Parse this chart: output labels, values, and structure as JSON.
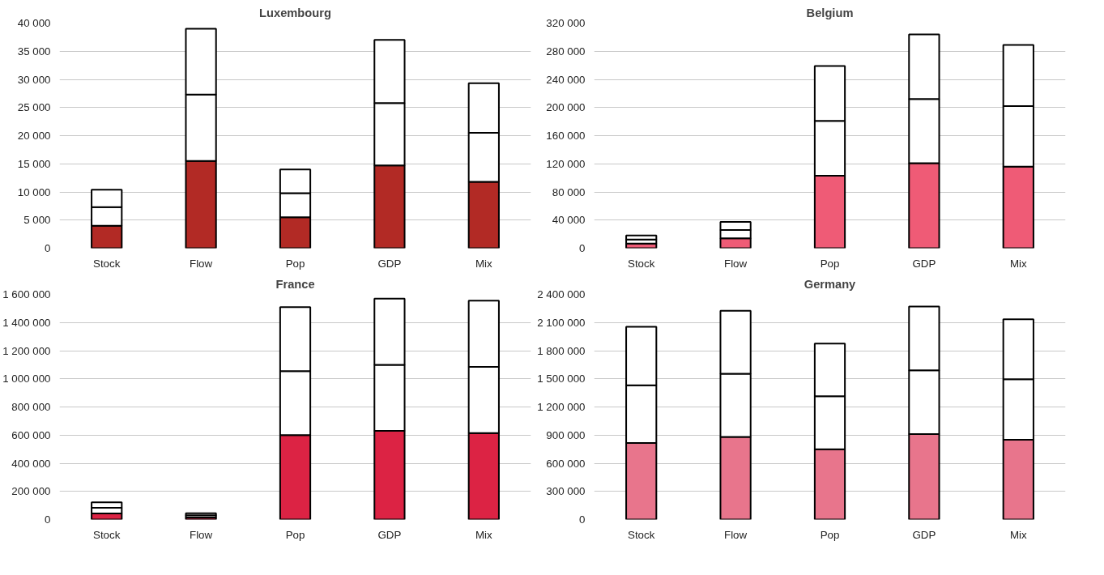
{
  "chart_data": [
    {
      "type": "bar",
      "title": "Luxembourg",
      "stacked": true,
      "grid": "y",
      "categories": [
        "Stock",
        "Flow",
        "Pop",
        "GDP",
        "Mix"
      ],
      "series": [
        {
          "color": "#b22a25",
          "values": [
            4000,
            15500,
            5500,
            14700,
            11800
          ]
        },
        {
          "color": "#ffffff",
          "values": [
            3300,
            11800,
            4300,
            11100,
            8700
          ]
        },
        {
          "color": "#ffffff",
          "values": [
            3100,
            11700,
            4200,
            11200,
            8800
          ]
        }
      ],
      "ylim": [
        0,
        40000
      ],
      "yticks": [
        0,
        {
          "value": 5000,
          "label": "5 000"
        },
        {
          "value": 10000,
          "label": "10 000"
        },
        {
          "value": 15000,
          "label": "15 000"
        },
        {
          "value": 20000,
          "label": "20 000"
        },
        {
          "value": 25000,
          "label": "25 000"
        },
        {
          "value": 30000,
          "label": "30 000"
        },
        {
          "value": 35000,
          "label": "35 000"
        },
        {
          "value": 40000,
          "label": "40 000"
        }
      ]
    },
    {
      "type": "bar",
      "title": "Belgium",
      "stacked": true,
      "grid": "y",
      "categories": [
        "Stock",
        "Flow",
        "Pop",
        "GDP",
        "Mix"
      ],
      "series": [
        {
          "color": "#ef5b76",
          "values": [
            6500,
            14000,
            103000,
            121000,
            116000
          ]
        },
        {
          "color": "#ffffff",
          "values": [
            6000,
            12000,
            78000,
            91000,
            86000
          ]
        },
        {
          "color": "#ffffff",
          "values": [
            5500,
            11500,
            78000,
            92000,
            87000
          ]
        }
      ],
      "ylim": [
        0,
        320000
      ],
      "yticks": [
        0,
        {
          "value": 40000,
          "label": "40 000"
        },
        {
          "value": 80000,
          "label": "80 000"
        },
        {
          "value": 120000,
          "label": "120 000"
        },
        {
          "value": 160000,
          "label": "160 000"
        },
        {
          "value": 200000,
          "label": "200 000"
        },
        {
          "value": 240000,
          "label": "240 000"
        },
        {
          "value": 280000,
          "label": "280 000"
        },
        {
          "value": 320000,
          "label": "320 000"
        }
      ]
    },
    {
      "type": "bar",
      "title": "France",
      "stacked": true,
      "grid": "y",
      "categories": [
        "Stock",
        "Flow",
        "Pop",
        "GDP",
        "Mix"
      ],
      "series": [
        {
          "color": "#dc2344",
          "values": [
            43000,
            15000,
            600000,
            630000,
            615000
          ]
        },
        {
          "color": "#ffffff",
          "values": [
            40000,
            15000,
            455000,
            470000,
            470000
          ]
        },
        {
          "color": "#ffffff",
          "values": [
            40000,
            15000,
            455000,
            470000,
            470000
          ]
        }
      ],
      "ylim": [
        0,
        1600000
      ],
      "yticks": [
        0,
        {
          "value": 200000,
          "label": "200 000"
        },
        {
          "value": 400000,
          "label": "400 000"
        },
        {
          "value": 600000,
          "label": "600 000"
        },
        {
          "value": 800000,
          "label": "800 000"
        },
        {
          "value": 1000000,
          "label": "1 000 000"
        },
        {
          "value": 1200000,
          "label": "1 200 000"
        },
        {
          "value": 1400000,
          "label": "1 400 000"
        },
        {
          "value": 1600000,
          "label": "1 600 000"
        }
      ]
    },
    {
      "type": "bar",
      "title": "Germany",
      "stacked": true,
      "grid": "y",
      "categories": [
        "Stock",
        "Flow",
        "Pop",
        "GDP",
        "Mix"
      ],
      "series": [
        {
          "color": "#e8758c",
          "values": [
            815000,
            880000,
            750000,
            910000,
            850000
          ]
        },
        {
          "color": "#ffffff",
          "values": [
            615000,
            675000,
            565000,
            680000,
            645000
          ]
        },
        {
          "color": "#ffffff",
          "values": [
            625000,
            670000,
            560000,
            680000,
            640000
          ]
        }
      ],
      "ylim": [
        0,
        2400000
      ],
      "yticks": [
        0,
        {
          "value": 300000,
          "label": "300 000"
        },
        {
          "value": 600000,
          "label": "600 000"
        },
        {
          "value": 900000,
          "label": "900 000"
        },
        {
          "value": 1200000,
          "label": "1 200 000"
        },
        {
          "value": 1500000,
          "label": "1 500 000"
        },
        {
          "value": 1800000,
          "label": "1 800 000"
        },
        {
          "value": 2100000,
          "label": "2 100 000"
        },
        {
          "value": 2400000,
          "label": "2 400 000"
        }
      ]
    }
  ]
}
